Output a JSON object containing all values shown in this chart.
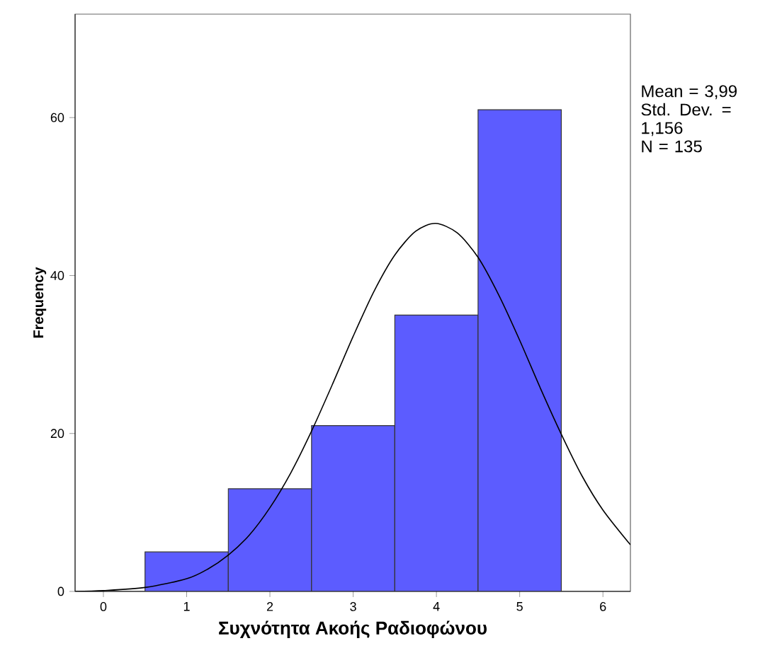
{
  "chart_data": {
    "type": "histogram",
    "xlabel": "Συχνότητα Ακοής Ραδιοφώνου",
    "ylabel": "Frequency",
    "bins": [
      0.5,
      1.5,
      2.5,
      3.5,
      4.5,
      5.5
    ],
    "values": [
      5,
      13,
      21,
      35,
      61
    ],
    "color": "#5c5cff",
    "series": [
      {
        "type": "line",
        "color": "#000000",
        "x": [
          -0.34,
          0,
          0.5,
          1,
          1.25,
          1.5,
          1.75,
          2,
          2.25,
          2.5,
          2.75,
          3,
          3.25,
          3.5,
          3.75,
          3.99,
          4.25,
          4.5,
          4.75,
          5,
          5.25,
          5.5,
          5.75,
          6,
          6.33
        ],
        "values": [
          0,
          0.1,
          0.5,
          1.6,
          2.8,
          4.6,
          7.1,
          10.6,
          15,
          20.3,
          26.2,
          32.3,
          38,
          42.6,
          45.6,
          46.6,
          45.4,
          42.3,
          37.5,
          31.8,
          25.7,
          19.9,
          14.6,
          10.3,
          5.9
        ]
      }
    ],
    "annotations": [
      "Mean = 3,99",
      "Std. Dev. = 1,156",
      "N = 135"
    ],
    "xlim": [
      -0.34,
      6.33
    ],
    "ylim": [
      0,
      73.1
    ],
    "xticks": [
      0,
      1,
      2,
      3,
      4,
      5,
      6
    ],
    "yticks": [
      0,
      20,
      40,
      60
    ],
    "grid": false
  }
}
